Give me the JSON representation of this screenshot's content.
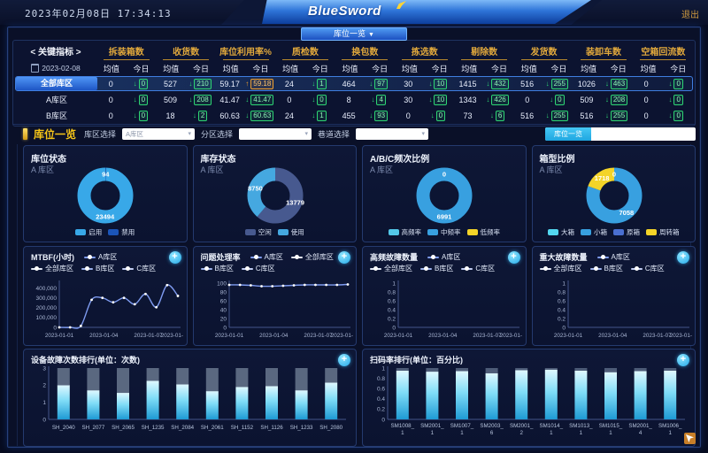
{
  "header": {
    "datetime": "2023年02月08日 17:34:13",
    "logo": "BlueSword",
    "logout_label": "退出",
    "nav_button": "库位一览",
    "caret": "▼"
  },
  "kpi": {
    "corner_title": "< 关键指标 >",
    "date": "2023-02-08",
    "avg_label": "均值",
    "today_label": "今日",
    "columns": [
      "拆装箱数",
      "收货数",
      "库位利用率%",
      "质检数",
      "换包数",
      "拣选数",
      "剔除数",
      "发货数",
      "装卸车数",
      "空箱回流数"
    ],
    "rows": [
      {
        "label": "全部库区",
        "selected": true,
        "cells": [
          {
            "avg": "0",
            "today": "0",
            "dir": "down"
          },
          {
            "avg": "527",
            "today": "210",
            "dir": "down"
          },
          {
            "avg": "59.17",
            "today": "59.18",
            "dir": "up"
          },
          {
            "avg": "24",
            "today": "1",
            "dir": "down"
          },
          {
            "avg": "464",
            "today": "97",
            "dir": "down"
          },
          {
            "avg": "30",
            "today": "10",
            "dir": "down"
          },
          {
            "avg": "1415",
            "today": "432",
            "dir": "down"
          },
          {
            "avg": "516",
            "today": "255",
            "dir": "down"
          },
          {
            "avg": "1026",
            "today": "463",
            "dir": "down"
          },
          {
            "avg": "0",
            "today": "0",
            "dir": "down"
          }
        ]
      },
      {
        "label": "A库区",
        "selected": false,
        "cells": [
          {
            "avg": "0",
            "today": "0",
            "dir": "down"
          },
          {
            "avg": "509",
            "today": "208",
            "dir": "down"
          },
          {
            "avg": "41.47",
            "today": "41.47",
            "dir": "down"
          },
          {
            "avg": "0",
            "today": "0",
            "dir": "down"
          },
          {
            "avg": "8",
            "today": "4",
            "dir": "down"
          },
          {
            "avg": "30",
            "today": "10",
            "dir": "down"
          },
          {
            "avg": "1343",
            "today": "426",
            "dir": "down"
          },
          {
            "avg": "0",
            "today": "0",
            "dir": "down"
          },
          {
            "avg": "509",
            "today": "208",
            "dir": "down"
          },
          {
            "avg": "0",
            "today": "0",
            "dir": "down"
          }
        ]
      },
      {
        "label": "B库区",
        "selected": false,
        "cells": [
          {
            "avg": "0",
            "today": "0",
            "dir": "down"
          },
          {
            "avg": "18",
            "today": "2",
            "dir": "down"
          },
          {
            "avg": "60.63",
            "today": "60.63",
            "dir": "down"
          },
          {
            "avg": "24",
            "today": "1",
            "dir": "down"
          },
          {
            "avg": "455",
            "today": "93",
            "dir": "down"
          },
          {
            "avg": "0",
            "today": "0",
            "dir": "down"
          },
          {
            "avg": "73",
            "today": "6",
            "dir": "down"
          },
          {
            "avg": "516",
            "today": "255",
            "dir": "down"
          },
          {
            "avg": "516",
            "today": "255",
            "dir": "down"
          },
          {
            "avg": "0",
            "today": "0",
            "dir": "down"
          }
        ]
      }
    ]
  },
  "filter": {
    "section_title": "库位一览",
    "fields": [
      {
        "label": "库区选择",
        "value": "A库区"
      },
      {
        "label": "分区选择",
        "value": ""
      },
      {
        "label": "巷道选择",
        "value": ""
      }
    ],
    "toggle_active": "库位一览"
  },
  "donuts": [
    {
      "title": "库位状态",
      "subtitle": "A 库区",
      "slices": [
        {
          "label": "禁用",
          "value": 94,
          "color": "#1b55b8",
          "show": true
        },
        {
          "label": "启用",
          "value": 23494,
          "color": "#38a8e8",
          "show": true
        }
      ],
      "legend": [
        {
          "label": "启用",
          "color": "#38a8e8"
        },
        {
          "label": "禁用",
          "color": "#1b55b8"
        }
      ]
    },
    {
      "title": "库存状态",
      "subtitle": "A 库区",
      "slices": [
        {
          "label": "空闲",
          "value": 13779,
          "color": "#47598f",
          "show": true
        },
        {
          "label": "使用",
          "value": 8750,
          "color": "#45a8e0",
          "show": true
        }
      ],
      "legend": [
        {
          "label": "空闲",
          "color": "#47598f"
        },
        {
          "label": "使用",
          "color": "#45a8e0"
        }
      ]
    },
    {
      "title": "A/B/C频次比例",
      "subtitle": "A 库区",
      "slices": [
        {
          "label": "高频率",
          "value": 0,
          "color": "#53c7e8",
          "show": true
        },
        {
          "label": "中频率",
          "value": 6991,
          "color": "#38a0e0",
          "show": true
        },
        {
          "label": "低频率",
          "value": 0,
          "color": "#f4d428",
          "show": false
        }
      ],
      "legend": [
        {
          "label": "高频率",
          "color": "#53c7e8"
        },
        {
          "label": "中频率",
          "color": "#38a0e0"
        },
        {
          "label": "低频率",
          "color": "#f4d428"
        }
      ]
    },
    {
      "title": "箱型比例",
      "subtitle": "A 库区",
      "slices": [
        {
          "label": "大箱",
          "value": 0,
          "color": "#53d7f0",
          "show": true
        },
        {
          "label": "小箱",
          "value": 7058,
          "color": "#38a0e0",
          "show": true
        },
        {
          "label": "原箱",
          "value": 0,
          "color": "#4a6fd0",
          "show": false
        },
        {
          "label": "周转箱",
          "value": 1718,
          "color": "#f4d428",
          "show": true
        }
      ],
      "legend": [
        {
          "label": "大箱",
          "color": "#53d7f0"
        },
        {
          "label": "小箱",
          "color": "#38a0e0"
        },
        {
          "label": "原箱",
          "color": "#4a6fd0"
        },
        {
          "label": "周转箱",
          "color": "#f4d428"
        }
      ]
    }
  ],
  "line_charts": [
    {
      "title": "MTBF(小时)",
      "legend": [
        {
          "name": "A库区",
          "color": "#7e9bf0"
        },
        {
          "name": "全部库区",
          "color": "#e4e9f7"
        },
        {
          "name": "B库区",
          "color": "#9fb3ec"
        },
        {
          "name": "C库区",
          "color": "#c3cef4"
        }
      ],
      "y_max": 450000,
      "y_ticks": [
        {
          "label": "400,000",
          "value": 400000
        },
        {
          "label": "300,000",
          "value": 300000
        },
        {
          "label": "200,000",
          "value": 200000
        },
        {
          "label": "100,000",
          "value": 100000
        },
        {
          "label": "0",
          "value": 0
        }
      ],
      "x_ticks": [
        {
          "label": "2023-01-01",
          "f": 0
        },
        {
          "label": "2023-01-04",
          "f": 0.375
        },
        {
          "label": "2023-01-07",
          "f": 0.75
        },
        {
          "label": "2023-01-",
          "f": 1,
          "end": true
        }
      ],
      "series": [
        {
          "name": "A库区",
          "color": "#7e9bf0",
          "values": [
            0,
            0,
            15000,
            280000,
            300000,
            255000,
            300000,
            235000,
            340000,
            205000,
            430000,
            320000
          ]
        }
      ]
    },
    {
      "title": "问题处理率",
      "legend": [
        {
          "name": "A库区",
          "color": "#7e9bf0"
        },
        {
          "name": "全部库区",
          "color": "#e4e9f7"
        },
        {
          "name": "B库区",
          "color": "#9fb3ec"
        },
        {
          "name": "C库区",
          "color": "#c3cef4"
        }
      ],
      "y_max": 100,
      "y_ticks": [
        {
          "label": "100",
          "value": 100
        },
        {
          "label": "80",
          "value": 80
        },
        {
          "label": "60",
          "value": 60
        },
        {
          "label": "40",
          "value": 40
        },
        {
          "label": "20",
          "value": 20
        },
        {
          "label": "0",
          "value": 0
        }
      ],
      "x_ticks": [
        {
          "label": "2023-01-01",
          "f": 0
        },
        {
          "label": "2023-01-04",
          "f": 0.375
        },
        {
          "label": "2023-01-07",
          "f": 0.75
        },
        {
          "label": "2023-01-",
          "f": 1,
          "end": true
        }
      ],
      "series": [
        {
          "name": "A库区",
          "color": "#7e9bf0",
          "values": [
            96,
            96,
            95,
            93,
            93,
            94,
            95,
            96,
            96,
            96,
            96,
            97
          ]
        }
      ]
    },
    {
      "title": "高频故障数量",
      "legend": [
        {
          "name": "A库区",
          "color": "#7e9bf0"
        },
        {
          "name": "全部库区",
          "color": "#e4e9f7"
        },
        {
          "name": "B库区",
          "color": "#9fb3ec"
        },
        {
          "name": "C库区",
          "color": "#c3cef4"
        }
      ],
      "y_max": 1,
      "y_ticks": [
        {
          "label": "1",
          "value": 1
        },
        {
          "label": "0.8",
          "value": 0.8
        },
        {
          "label": "0.6",
          "value": 0.6
        },
        {
          "label": "0.4",
          "value": 0.4
        },
        {
          "label": "0.2",
          "value": 0.2
        },
        {
          "label": "0",
          "value": 0
        }
      ],
      "x_ticks": [
        {
          "label": "2023-01-01",
          "f": 0
        },
        {
          "label": "2023-01-04",
          "f": 0.375
        },
        {
          "label": "2023-01-07",
          "f": 0.75
        },
        {
          "label": "2023-01-",
          "f": 1,
          "end": true
        }
      ],
      "series": []
    },
    {
      "title": "重大故障数量",
      "legend": [
        {
          "name": "A库区",
          "color": "#7e9bf0"
        },
        {
          "name": "全部库区",
          "color": "#e4e9f7"
        },
        {
          "name": "B库区",
          "color": "#9fb3ec"
        },
        {
          "name": "C库区",
          "color": "#c3cef4"
        }
      ],
      "y_max": 1,
      "y_ticks": [
        {
          "label": "1",
          "value": 1
        },
        {
          "label": "0.8",
          "value": 0.8
        },
        {
          "label": "0.6",
          "value": 0.6
        },
        {
          "label": "0.4",
          "value": 0.4
        },
        {
          "label": "0.2",
          "value": 0.2
        },
        {
          "label": "0",
          "value": 0
        }
      ],
      "x_ticks": [
        {
          "label": "2023-01-01",
          "f": 0
        },
        {
          "label": "2023-01-04",
          "f": 0.375
        },
        {
          "label": "2023-01-07",
          "f": 0.75
        },
        {
          "label": "2023-01-",
          "f": 1,
          "end": true
        }
      ],
      "series": []
    }
  ],
  "bar_charts": [
    {
      "title": "设备故障次数排行(单位：次数)",
      "y_max": 3,
      "y_ticks": [
        {
          "label": "3",
          "value": 3
        },
        {
          "label": "2",
          "value": 2
        },
        {
          "label": "1",
          "value": 1
        },
        {
          "label": "0",
          "value": 0
        }
      ],
      "categories": [
        "SH_2040",
        "SH_2077",
        "SH_2065",
        "SH_1235",
        "SH_2084",
        "SH_2061",
        "SH_1152",
        "SH_1126",
        "SH_1233",
        "SH_2080"
      ],
      "values": [
        2.0,
        1.7,
        1.55,
        2.25,
        2.05,
        1.65,
        1.9,
        1.95,
        1.7,
        2.15
      ],
      "total": 3,
      "cap_color": "#5a6880",
      "two_line": false
    },
    {
      "title": "扫码率排行(单位：百分比)",
      "y_max": 1,
      "y_ticks": [
        {
          "label": "1",
          "value": 1
        },
        {
          "label": "0.8",
          "value": 0.8
        },
        {
          "label": "0.6",
          "value": 0.6
        },
        {
          "label": "0.4",
          "value": 0.4
        },
        {
          "label": "0.2",
          "value": 0.2
        },
        {
          "label": "0",
          "value": 0
        }
      ],
      "categories": [
        "SM1008_1",
        "SM2001_1",
        "SM1007_1",
        "SM2003_6",
        "SM2001_2",
        "SM1014_1",
        "SM1013_1",
        "SM1015_1",
        "SM2001_4",
        "SM1006_1"
      ],
      "values": [
        0.95,
        0.93,
        0.94,
        0.9,
        0.96,
        0.97,
        0.95,
        0.92,
        0.94,
        0.95
      ],
      "total": 1,
      "cap_color": "#4e5c78",
      "two_line": true
    }
  ],
  "colors": {
    "accent_blue": "#2f7fe0",
    "cyan": "#35b9e6",
    "green": "#2ed573",
    "orange": "#f0a030",
    "gold": "#e2a93c",
    "line": "#7e9bf0"
  }
}
